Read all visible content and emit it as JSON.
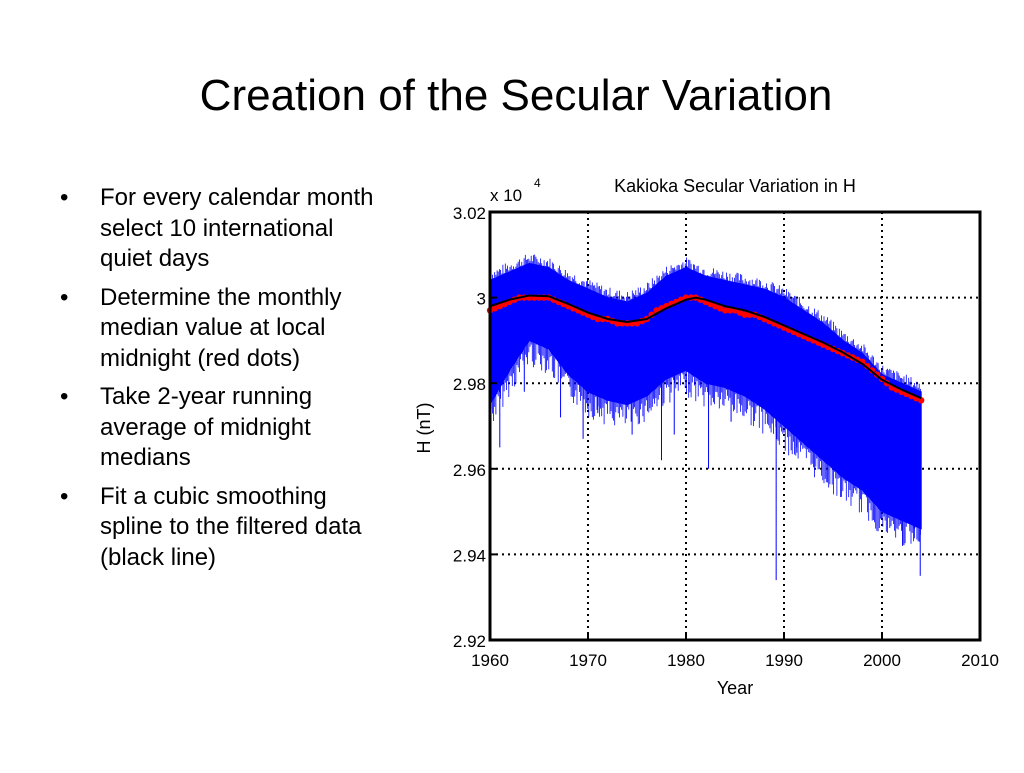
{
  "slide": {
    "title": "Creation of the Secular Variation",
    "bullet_glyph": "•",
    "bullets": [
      "For every calendar month select 10 international quiet days",
      "Determine the monthly median value at local midnight (red dots)",
      "Take 2-year running average of midnight medians",
      "Fit a cubic smoothing spline to the filtered data (black line)"
    ]
  },
  "chart_data": {
    "type": "line",
    "title": "Kakioka Secular Variation in H",
    "xlabel": "Year",
    "ylabel": "H (nT)",
    "exponent_base": "x 10",
    "exponent_power": "4",
    "xlim": [
      1960,
      2010
    ],
    "ylim": [
      2.92,
      3.02
    ],
    "x_ticks": [
      1960,
      1970,
      1980,
      1990,
      2000,
      2010
    ],
    "x_tick_labels": [
      "1960",
      "1970",
      "1980",
      "1990",
      "2000",
      "2010"
    ],
    "y_ticks": [
      2.92,
      2.94,
      2.96,
      2.98,
      3.0,
      3.02
    ],
    "y_tick_labels": [
      "2.92",
      "2.94",
      "2.96",
      "2.98",
      "3",
      "3.02"
    ],
    "grid": true,
    "grid_style": "dotted",
    "series": [
      {
        "name": "",
        "role": "hourly H values",
        "color": "#0000ff",
        "x": [
          1960,
          1962,
          1964,
          1966,
          1968,
          1970,
          1972,
          1974,
          1976,
          1978,
          1980,
          1982,
          1984,
          1986,
          1988,
          1990,
          1992,
          1994,
          1996,
          1998,
          2000,
          2002,
          2004
        ],
        "y_upper": [
          3.004,
          3.006,
          3.008,
          3.007,
          3.004,
          3.002,
          3.0,
          2.999,
          3.001,
          3.005,
          3.007,
          3.005,
          3.004,
          3.003,
          3.002,
          3.0,
          2.997,
          2.994,
          2.99,
          2.987,
          2.982,
          2.98,
          2.978
        ],
        "y_lower": [
          2.975,
          2.983,
          2.99,
          2.988,
          2.982,
          2.978,
          2.976,
          2.975,
          2.977,
          2.981,
          2.983,
          2.98,
          2.979,
          2.977,
          2.974,
          2.97,
          2.966,
          2.962,
          2.958,
          2.955,
          2.95,
          2.948,
          2.946
        ]
      },
      {
        "name": "",
        "role": "monthly midnight medians",
        "color": "#ff0000",
        "x": [
          1960,
          1961,
          1962,
          1963,
          1964,
          1965,
          1966,
          1967,
          1968,
          1969,
          1970,
          1971,
          1972,
          1973,
          1974,
          1975,
          1976,
          1977,
          1978,
          1979,
          1980,
          1981,
          1982,
          1983,
          1984,
          1985,
          1986,
          1987,
          1988,
          1989,
          1990,
          1991,
          1992,
          1993,
          1994,
          1995,
          1996,
          1997,
          1998,
          1999,
          2000,
          2001,
          2002,
          2003,
          2004
        ],
        "y": [
          2.997,
          2.998,
          2.999,
          3.0,
          3.0,
          3.0,
          3.0,
          2.999,
          2.998,
          2.997,
          2.996,
          2.995,
          2.995,
          2.994,
          2.994,
          2.994,
          2.995,
          2.997,
          2.998,
          2.999,
          3.0,
          3.0,
          2.999,
          2.998,
          2.997,
          2.997,
          2.996,
          2.996,
          2.995,
          2.994,
          2.993,
          2.992,
          2.991,
          2.99,
          2.989,
          2.988,
          2.987,
          2.986,
          2.985,
          2.983,
          2.981,
          2.979,
          2.978,
          2.977,
          2.976
        ]
      },
      {
        "name": "",
        "role": "cubic smoothing spline",
        "color": "#000000",
        "x": [
          1960,
          1962,
          1964,
          1966,
          1968,
          1970,
          1972,
          1974,
          1976,
          1978,
          1980,
          1981,
          1982,
          1984,
          1986,
          1988,
          1990,
          1992,
          1994,
          1996,
          1998,
          2000,
          2002,
          2004
        ],
        "y": [
          2.998,
          2.9995,
          3.0005,
          3.0003,
          2.9985,
          2.9965,
          2.995,
          2.9943,
          2.995,
          2.9975,
          2.9995,
          3.0,
          2.9995,
          2.998,
          2.997,
          2.9955,
          2.9935,
          2.9915,
          2.9895,
          2.9872,
          2.9845,
          2.9808,
          2.9785,
          2.9765
        ]
      }
    ],
    "spikes": [
      {
        "x": 1960.3,
        "y": 2.978
      },
      {
        "x": 1961.0,
        "y": 2.965
      },
      {
        "x": 1963.5,
        "y": 2.978
      },
      {
        "x": 1967.2,
        "y": 2.972
      },
      {
        "x": 1969.5,
        "y": 2.967
      },
      {
        "x": 1971.0,
        "y": 2.973
      },
      {
        "x": 1974.5,
        "y": 2.968
      },
      {
        "x": 1977.5,
        "y": 2.962
      },
      {
        "x": 1978.8,
        "y": 2.968
      },
      {
        "x": 1982.3,
        "y": 2.96
      },
      {
        "x": 1984.6,
        "y": 2.971
      },
      {
        "x": 1989.2,
        "y": 2.934
      },
      {
        "x": 1991.3,
        "y": 2.965
      },
      {
        "x": 1993.6,
        "y": 2.97
      },
      {
        "x": 1995.1,
        "y": 2.962
      },
      {
        "x": 1998.2,
        "y": 2.961
      },
      {
        "x": 2000.1,
        "y": 2.955
      },
      {
        "x": 2001.1,
        "y": 2.952
      },
      {
        "x": 2002.1,
        "y": 2.942
      },
      {
        "x": 2003.3,
        "y": 2.946
      },
      {
        "x": 2003.9,
        "y": 2.935
      }
    ]
  }
}
